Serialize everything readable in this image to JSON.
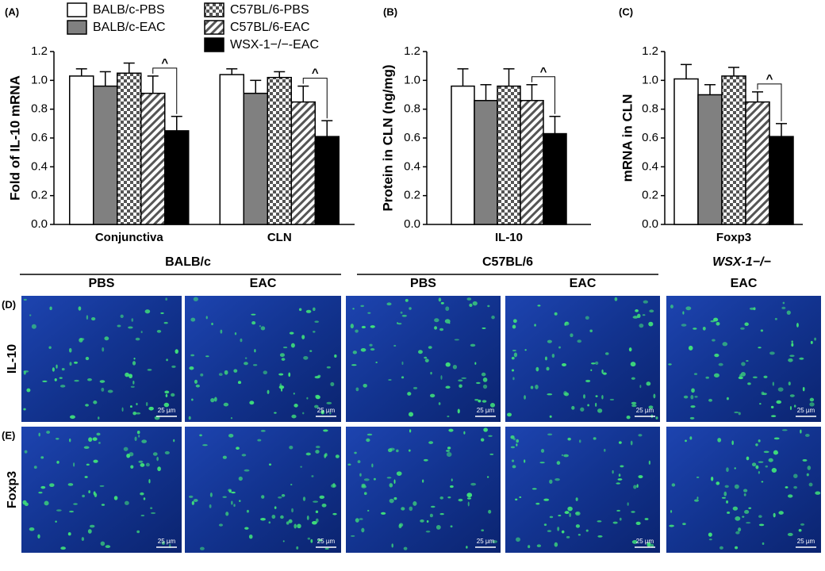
{
  "chart_data": [
    {
      "type": "bar",
      "panel": "(A)",
      "ylabel": "Fold of IL-10 mRNA",
      "categories": [
        "Conjunctiva",
        "CLN"
      ],
      "series": [
        {
          "name": "BALB/c-PBS",
          "color": "#ffffff",
          "pattern": "solid",
          "values": [
            1.03,
            1.04
          ],
          "errors": [
            0.05,
            0.04
          ]
        },
        {
          "name": "BALB/c-EAC",
          "color": "#808080",
          "pattern": "solid",
          "values": [
            0.96,
            0.91
          ],
          "errors": [
            0.1,
            0.09
          ]
        },
        {
          "name": "C57BL/6-PBS",
          "color": "#ffffff",
          "pattern": "checker",
          "values": [
            1.05,
            1.02
          ],
          "errors": [
            0.07,
            0.04
          ]
        },
        {
          "name": "C57BL/6-EAC",
          "color": "#ffffff",
          "pattern": "hatch",
          "values": [
            0.91,
            0.85
          ],
          "errors": [
            0.12,
            0.11
          ]
        },
        {
          "name": "WSX-1−/−-EAC",
          "color": "#000000",
          "pattern": "solid",
          "values": [
            0.65,
            0.61
          ],
          "errors": [
            0.1,
            0.11
          ]
        }
      ],
      "annotations": [
        "^",
        "^"
      ],
      "ylim": [
        0,
        1.2
      ],
      "yticks": [
        {
          "value": 0,
          "label": "0.0"
        },
        {
          "value": 0.2,
          "label": "0.2"
        },
        {
          "value": 0.4,
          "label": "0.4"
        },
        {
          "value": 0.6,
          "label": "0.6"
        },
        {
          "value": 0.8,
          "label": "0.8"
        },
        {
          "value": 1,
          "label": "1.0"
        },
        {
          "value": 1.2,
          "label": "1.2"
        }
      ],
      "legend": true
    },
    {
      "type": "bar",
      "panel": "(B)",
      "ylabel": "Protein in CLN (ng/mg)",
      "categories": [
        "IL-10"
      ],
      "series": [
        {
          "name": "BALB/c-PBS",
          "color": "#ffffff",
          "pattern": "solid",
          "values": [
            0.96
          ],
          "errors": [
            0.12
          ]
        },
        {
          "name": "BALB/c-EAC",
          "color": "#808080",
          "pattern": "solid",
          "values": [
            0.86
          ],
          "errors": [
            0.11
          ]
        },
        {
          "name": "C57BL/6-PBS",
          "color": "#ffffff",
          "pattern": "checker",
          "values": [
            0.96
          ],
          "errors": [
            0.12
          ]
        },
        {
          "name": "C57BL/6-EAC",
          "color": "#ffffff",
          "pattern": "hatch",
          "values": [
            0.86
          ],
          "errors": [
            0.11
          ]
        },
        {
          "name": "WSX-1−/−-EAC",
          "color": "#000000",
          "pattern": "solid",
          "values": [
            0.63
          ],
          "errors": [
            0.12
          ]
        }
      ],
      "annotations": [
        "^"
      ],
      "ylim": [
        0,
        1.2
      ],
      "yticks": [
        {
          "value": 0,
          "label": "0.0"
        },
        {
          "value": 0.2,
          "label": "0.2"
        },
        {
          "value": 0.4,
          "label": "0.4"
        },
        {
          "value": 0.6,
          "label": "0.6"
        },
        {
          "value": 0.8,
          "label": "0.8"
        },
        {
          "value": 1,
          "label": "1.0"
        },
        {
          "value": 1.2,
          "label": "1.2"
        }
      ],
      "legend": false
    },
    {
      "type": "bar",
      "panel": "(C)",
      "ylabel": "mRNA in CLN",
      "categories": [
        "Foxp3"
      ],
      "series": [
        {
          "name": "BALB/c-PBS",
          "color": "#ffffff",
          "pattern": "solid",
          "values": [
            1.01
          ],
          "errors": [
            0.1
          ]
        },
        {
          "name": "BALB/c-EAC",
          "color": "#808080",
          "pattern": "solid",
          "values": [
            0.9
          ],
          "errors": [
            0.07
          ]
        },
        {
          "name": "C57BL/6-PBS",
          "color": "#ffffff",
          "pattern": "checker",
          "values": [
            1.03
          ],
          "errors": [
            0.06
          ]
        },
        {
          "name": "C57BL/6-EAC",
          "color": "#ffffff",
          "pattern": "hatch",
          "values": [
            0.85
          ],
          "errors": [
            0.07
          ]
        },
        {
          "name": "WSX-1−/−-EAC",
          "color": "#000000",
          "pattern": "solid",
          "values": [
            0.61
          ],
          "errors": [
            0.09
          ]
        }
      ],
      "annotations": [
        "^"
      ],
      "ylim": [
        0,
        1.2
      ],
      "yticks": [
        {
          "value": 0,
          "label": "0.0"
        },
        {
          "value": 0.2,
          "label": "0.2"
        },
        {
          "value": 0.4,
          "label": "0.4"
        },
        {
          "value": 0.6,
          "label": "0.6"
        },
        {
          "value": 0.8,
          "label": "0.8"
        },
        {
          "value": 1,
          "label": "1.0"
        },
        {
          "value": 1.2,
          "label": "1.2"
        }
      ],
      "legend": false
    }
  ],
  "micrographs": {
    "groups": [
      "BALB/c",
      "C57BL/6",
      "WSX-1−/−"
    ],
    "columns": [
      "PBS",
      "EAC",
      "PBS",
      "EAC",
      "EAC"
    ],
    "rows": [
      {
        "panel": "(D)",
        "label": "IL-10"
      },
      {
        "panel": "(E)",
        "label": "Foxp3"
      }
    ],
    "scale_bar": "25 µm"
  }
}
